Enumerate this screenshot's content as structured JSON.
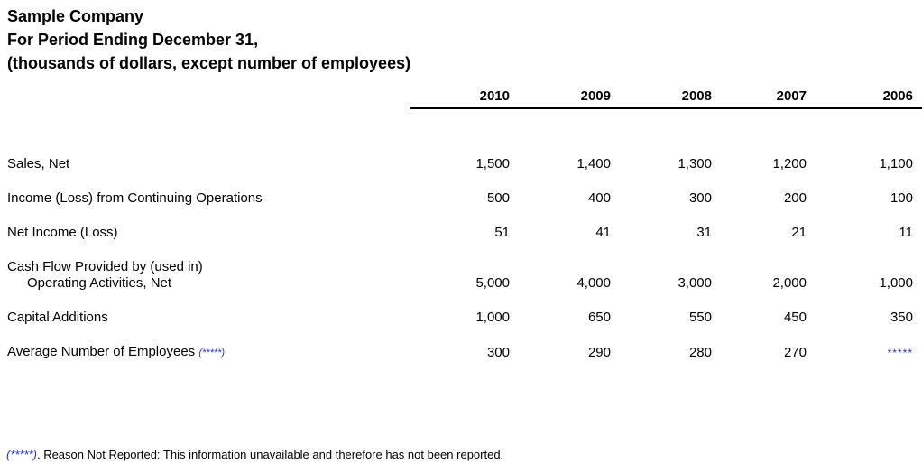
{
  "header": {
    "company": "Sample Company",
    "period": "For Period Ending December 31,",
    "units": "(thousands of dollars, except number of employees)"
  },
  "table": {
    "year_columns": [
      "2010",
      "2009",
      "2008",
      "2007",
      "2006"
    ],
    "rows": [
      {
        "label": "Sales, Net",
        "values": [
          "1,500",
          "1,400",
          "1,300",
          "1,200",
          "1,100"
        ]
      },
      {
        "label": "Income (Loss) from Continuing Operations",
        "values": [
          "500",
          "400",
          "300",
          "200",
          "100"
        ]
      },
      {
        "label": "Net Income (Loss)",
        "values": [
          "51",
          "41",
          "31",
          "21",
          "11"
        ]
      },
      {
        "label_line1": "Cash Flow Provided by (used in)",
        "label_line2": "Operating Activities, Net",
        "values": [
          "5,000",
          "4,000",
          "3,000",
          "2,000",
          "1,000"
        ]
      },
      {
        "label": "Capital Additions",
        "values": [
          "1,000",
          "650",
          "550",
          "450",
          "350"
        ]
      },
      {
        "label": "Average Number of Employees",
        "label_suffix": "(*****)",
        "values": [
          "300",
          "290",
          "280",
          "270",
          "*****"
        ],
        "missing_value_marker": "*****"
      }
    ]
  },
  "footnote": {
    "marker": "(*****)",
    "text": ". Reason Not Reported: This information unavailable and therefore has not been reported."
  },
  "colors": {
    "text": "#000000",
    "note_accent": "#2233cc"
  }
}
